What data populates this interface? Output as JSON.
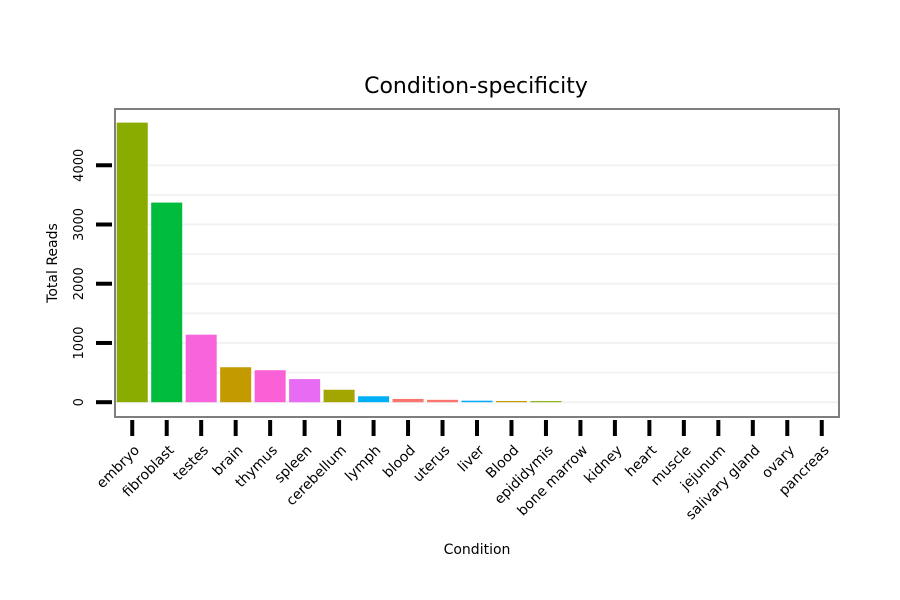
{
  "chart_data": {
    "type": "bar",
    "title": "Condition-specificity",
    "xlabel": "Condition",
    "ylabel": "Total Reads",
    "categories": [
      "embryo",
      "fibroblast",
      "testes",
      "brain",
      "thymus",
      "spleen",
      "cerebellum",
      "lymph",
      "blood",
      "uterus",
      "liver",
      "Blood",
      "epididymis",
      "bone marrow",
      "kidney",
      "heart",
      "muscle",
      "jejunum",
      "salivary gland",
      "ovary",
      "pancreas"
    ],
    "values": [
      4720,
      3370,
      1140,
      590,
      540,
      390,
      210,
      100,
      55,
      40,
      25,
      20,
      18,
      0,
      0,
      0,
      0,
      0,
      0,
      0,
      0
    ],
    "colors": [
      "#8AAC00",
      "#00BC3C",
      "#F764DC",
      "#C39A00",
      "#FB61D7",
      "#E76BF3",
      "#A3A500",
      "#00B0F6",
      "#F8766D",
      "#F8766D",
      "#00A9FF",
      "#C49A00",
      "#7CAE00",
      "#FF62BC",
      "#00BF7D",
      "#D89000",
      "#39B600",
      "#00C1A3",
      "#9590FF",
      "#FF6C91",
      "#00BAE0"
    ],
    "yticks": [
      0,
      1000,
      2000,
      3000,
      4000
    ],
    "ylim": [
      -250,
      4950
    ],
    "grid": true
  }
}
